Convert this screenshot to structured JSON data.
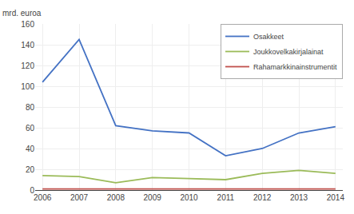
{
  "chart_data": {
    "type": "line",
    "ylabel": "mrd. euroa",
    "x": [
      2006,
      2007,
      2008,
      2009,
      2010,
      2011,
      2012,
      2013,
      2014
    ],
    "series": [
      {
        "name": "Osakkeet",
        "color": "#4472c4",
        "values": [
          104,
          145,
          62,
          57,
          55,
          33,
          40,
          55,
          61
        ]
      },
      {
        "name": "Joukkovelkakirjalainat",
        "color": "#9bbb59",
        "values": [
          14,
          13,
          7,
          12,
          11,
          10,
          16,
          19,
          16
        ]
      },
      {
        "name": "Rahamarkkinainstrumentit",
        "color": "#c0504d",
        "values": [
          1,
          1,
          1,
          1,
          1,
          1,
          1,
          1,
          1
        ]
      }
    ],
    "xlim": [
      2005.8,
      2014.2
    ],
    "xticks": [
      2006,
      2007,
      2008,
      2009,
      2010,
      2011,
      2012,
      2013,
      2014
    ],
    "ylim": [
      0,
      160
    ],
    "yticks": [
      0,
      20,
      40,
      60,
      80,
      100,
      120,
      140,
      160
    ],
    "grid": true,
    "legend": "upper right"
  }
}
